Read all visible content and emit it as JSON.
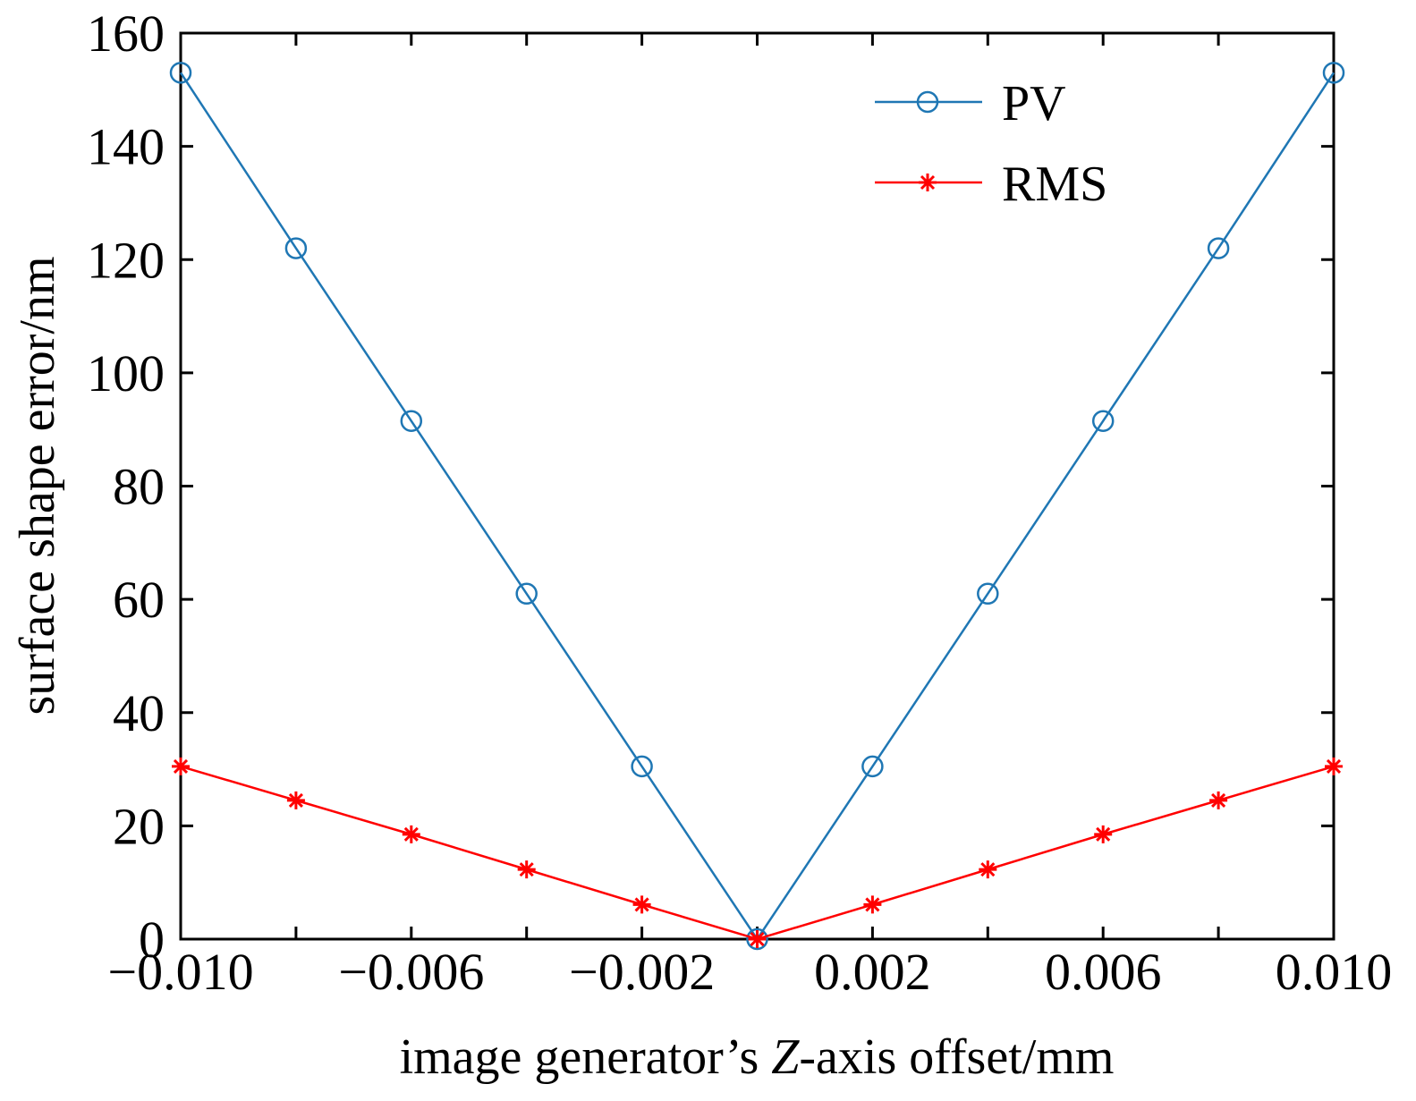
{
  "chart_data": {
    "type": "line",
    "title": "",
    "xlabel": {
      "prefix": "image generator’s ",
      "italic": "Z",
      "suffix": "-axis offset/mm"
    },
    "ylabel": "surface shape error/nm",
    "xlim": [
      -0.01,
      0.01
    ],
    "ylim": [
      0,
      160
    ],
    "x_ticks": [
      -0.01,
      -0.006,
      -0.002,
      0.002,
      0.006,
      0.01
    ],
    "x_tick_labels": [
      "−0.010",
      "−0.006",
      "−0.002",
      "0.002",
      "0.006",
      "0.010"
    ],
    "x_minor_ticks": [
      -0.008,
      -0.004,
      0.0,
      0.004,
      0.008
    ],
    "y_ticks": [
      0,
      20,
      40,
      60,
      80,
      100,
      120,
      140,
      160
    ],
    "y_tick_labels": [
      "0",
      "20",
      "40",
      "60",
      "80",
      "100",
      "120",
      "140",
      "160"
    ],
    "grid": false,
    "legend": {
      "placement": "top-right"
    },
    "x": [
      -0.01,
      -0.008,
      -0.006,
      -0.004,
      -0.002,
      0.0,
      0.002,
      0.004,
      0.006,
      0.008,
      0.01
    ],
    "series": [
      {
        "name": "PV",
        "color": "#1f77b4",
        "marker": "circle",
        "values": [
          153,
          122,
          91.5,
          61,
          30.5,
          0,
          30.5,
          61,
          91.5,
          122,
          153
        ]
      },
      {
        "name": "RMS",
        "color": "#ff0000",
        "marker": "asterisk",
        "values": [
          30.5,
          24.5,
          18.5,
          12.3,
          6.1,
          0,
          6.1,
          12.3,
          18.5,
          24.5,
          30.5
        ]
      }
    ]
  }
}
